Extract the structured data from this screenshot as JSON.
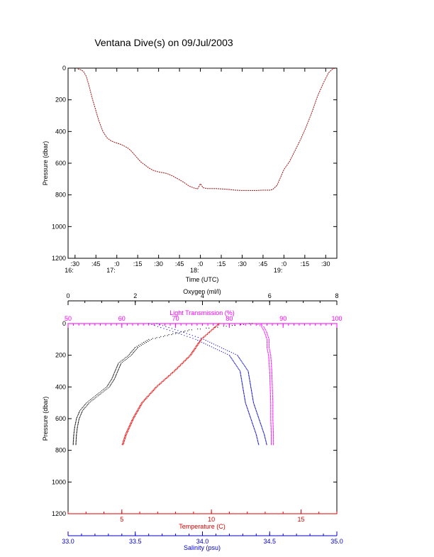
{
  "title": "Ventana Dive(s) on 09/Jul/2003",
  "colors": {
    "axis": "#000000",
    "dive_track": "#a01010",
    "oxygen": "#000000",
    "light_transmission": "#ff00ff",
    "temperature": "#e00000",
    "salinity": "#0000cc"
  },
  "chart_data": [
    {
      "type": "line",
      "title": "Ventana Dive(s) on 09/Jul/2003",
      "xlabel": "Time (UTC)",
      "ylabel": "Pressure (dbar)",
      "xlim_minutes_after_16h": [
        25,
        218
      ],
      "ylim": [
        1200,
        0
      ],
      "y_reversed": true,
      "x_ticks": [
        ":30",
        ":45",
        ":0",
        ":15",
        ":30",
        ":45",
        ":0",
        ":15",
        ":30",
        ":45",
        ":0",
        ":15",
        ":30"
      ],
      "x_tick_minutes": [
        30,
        45,
        60,
        75,
        90,
        105,
        120,
        135,
        150,
        165,
        180,
        195,
        210
      ],
      "hour_labels": [
        "16:",
        "17:",
        "18:",
        "19:"
      ],
      "hour_label_minutes": [
        30,
        60,
        120,
        180
      ],
      "y_ticks": [
        0,
        200,
        400,
        600,
        800,
        1000,
        1200
      ],
      "series": [
        {
          "x_minutes": [
            32,
            34,
            36,
            38,
            40,
            42,
            45,
            47,
            50,
            53,
            56,
            59,
            62,
            65,
            68,
            70,
            72,
            75,
            77,
            80,
            83,
            86,
            90,
            93,
            96,
            100,
            104,
            108,
            112,
            116,
            118,
            120,
            122,
            125,
            130,
            135,
            140,
            145,
            150,
            155,
            160,
            165,
            170,
            172,
            175,
            178,
            180,
            184,
            188,
            192,
            196,
            200,
            204,
            208,
            212,
            215,
            217
          ],
          "pressure": [
            5,
            10,
            20,
            50,
            110,
            180,
            270,
            330,
            400,
            440,
            460,
            470,
            478,
            490,
            505,
            520,
            540,
            570,
            590,
            610,
            630,
            645,
            655,
            660,
            665,
            680,
            700,
            720,
            745,
            758,
            762,
            730,
            755,
            760,
            760,
            762,
            765,
            770,
            772,
            772,
            772,
            770,
            770,
            765,
            740,
            680,
            640,
            590,
            520,
            450,
            370,
            280,
            180,
            100,
            30,
            5,
            0
          ]
        }
      ]
    },
    {
      "type": "scatter",
      "ylabel": "Pressure (dbar)",
      "ylim": [
        1200,
        0
      ],
      "y_reversed": true,
      "y_ticks": [
        0,
        200,
        400,
        600,
        800,
        1000,
        1200
      ],
      "axes": {
        "oxygen": {
          "label": "Oxygen (ml/l)",
          "lim": [
            0,
            8
          ],
          "ticks": [
            "0",
            "2",
            "4",
            "6",
            "8"
          ]
        },
        "light_transmission": {
          "label": "Light Transmission (%)",
          "lim": [
            50,
            100
          ],
          "ticks": [
            "50",
            "60",
            "70",
            "80",
            "90",
            "100"
          ]
        },
        "temperature": {
          "label": "Temperature (C)",
          "lim": [
            2,
            17
          ],
          "ticks": [
            "5",
            "10",
            "15"
          ]
        },
        "salinity": {
          "label": "Salinity (psu)",
          "lim": [
            33.0,
            35.0
          ],
          "ticks": [
            "33.0",
            "33.5",
            "34.0",
            "34.5",
            "35.0"
          ]
        }
      },
      "series": [
        {
          "name": "Oxygen (ml/l)",
          "pressure": [
            0,
            40,
            100,
            150,
            200,
            250,
            300,
            350,
            400,
            450,
            500,
            550,
            600,
            650,
            700,
            770
          ],
          "values": [
            5.4,
            3.6,
            2.4,
            2.0,
            1.8,
            1.5,
            1.4,
            1.3,
            1.15,
            0.85,
            0.55,
            0.35,
            0.25,
            0.2,
            0.17,
            0.15
          ]
        },
        {
          "name": "Light Transmission (%)",
          "pressure": [
            0,
            20,
            50,
            100,
            150,
            200,
            300,
            400,
            500,
            600,
            700,
            770
          ],
          "values": [
            85,
            86,
            86.5,
            87,
            87,
            87.3,
            87.5,
            87.6,
            87.7,
            87.7,
            87.8,
            87.8
          ]
        },
        {
          "name": "Temperature (C)",
          "pressure": [
            0,
            50,
            100,
            200,
            300,
            400,
            500,
            600,
            700,
            770
          ],
          "values": [
            10.4,
            9.9,
            9.4,
            8.8,
            7.9,
            6.9,
            6.1,
            5.6,
            5.2,
            5.0
          ]
        },
        {
          "name": "Salinity (psu)",
          "pressure": [
            0,
            50,
            100,
            200,
            300,
            400,
            500,
            600,
            700,
            770
          ],
          "values": [
            33.6,
            33.78,
            33.95,
            34.2,
            34.28,
            34.3,
            34.32,
            34.36,
            34.4,
            34.42
          ]
        }
      ]
    }
  ]
}
